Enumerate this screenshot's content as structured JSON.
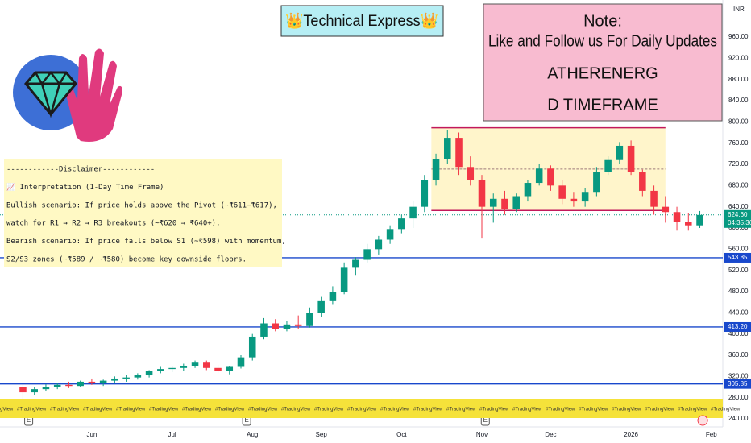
{
  "banner": "👑Technical Express👑",
  "note": {
    "title": "Note:",
    "line1": "Like and Follow us For Daily Updates",
    "symbol": "ATHERENERG",
    "timeframe": "D TIMEFRAME"
  },
  "disclaimer": [
    "------------Disclaimer------------",
    "📈 Interpretation (1-Day Time Frame)",
    "Bullish scenario: If price holds above the Pivot (~₹611–₹617),",
    "watch for R1 → R2 → R3 breakouts (~₹620 → ₹640+).",
    "Bearish scenario: If price falls below S1 (~₹598) with momentum,",
    "S2/S3 zones (~₹589 / ~₹580) become key downside floors."
  ],
  "watermark": "#TradingView",
  "event_marker": "E",
  "chart_data": {
    "type": "candlestick",
    "currency": "INR",
    "up_color": "#089981",
    "down_color": "#f23645",
    "open": [
      300,
      290,
      296,
      300,
      304,
      302,
      310,
      308,
      312,
      316,
      318,
      322,
      330,
      334,
      336,
      340,
      346,
      336,
      330,
      338,
      356,
      395,
      420,
      410,
      418,
      415,
      440,
      462,
      480,
      525,
      540,
      560,
      578,
      598,
      618,
      640,
      690,
      730,
      770,
      715,
      690,
      640,
      655,
      635,
      660,
      685,
      712,
      680,
      655,
      650,
      668,
      705,
      728,
      755,
      705,
      670,
      640,
      630,
      612,
      605
    ],
    "high": [
      305,
      300,
      305,
      308,
      310,
      312,
      316,
      314,
      320,
      322,
      326,
      332,
      338,
      340,
      344,
      350,
      350,
      342,
      340,
      360,
      400,
      430,
      428,
      425,
      435,
      450,
      470,
      490,
      535,
      545,
      570,
      585,
      605,
      625,
      650,
      700,
      740,
      785,
      780,
      735,
      700,
      665,
      670,
      665,
      690,
      720,
      718,
      690,
      668,
      675,
      715,
      735,
      762,
      765,
      710,
      680,
      660,
      640,
      628,
      632
    ],
    "low": [
      275,
      285,
      292,
      296,
      298,
      300,
      304,
      302,
      308,
      310,
      314,
      318,
      326,
      328,
      330,
      336,
      332,
      326,
      324,
      335,
      350,
      390,
      405,
      405,
      410,
      412,
      432,
      455,
      475,
      510,
      535,
      550,
      570,
      590,
      600,
      630,
      680,
      720,
      700,
      680,
      580,
      610,
      625,
      630,
      650,
      680,
      670,
      645,
      640,
      640,
      660,
      700,
      720,
      700,
      660,
      625,
      610,
      595,
      595,
      600
    ],
    "close": [
      290,
      296,
      300,
      304,
      302,
      310,
      308,
      312,
      316,
      318,
      322,
      330,
      334,
      336,
      340,
      346,
      336,
      330,
      338,
      356,
      395,
      420,
      410,
      418,
      415,
      440,
      462,
      480,
      525,
      540,
      560,
      578,
      598,
      618,
      640,
      690,
      730,
      770,
      715,
      690,
      640,
      655,
      635,
      660,
      685,
      712,
      680,
      655,
      650,
      668,
      705,
      728,
      755,
      705,
      670,
      640,
      630,
      612,
      605,
      624.6
    ],
    "xlim": [
      -2,
      61
    ],
    "xticks": [
      {
        "value": 6,
        "label": "Jun"
      },
      {
        "value": 13,
        "label": "Jul"
      },
      {
        "value": 20,
        "label": "Aug"
      },
      {
        "value": 26,
        "label": "Sep"
      },
      {
        "value": 33,
        "label": "Oct"
      },
      {
        "value": 40,
        "label": "Nov"
      },
      {
        "value": 46,
        "label": "Dec"
      },
      {
        "value": 53,
        "label": "2026"
      },
      {
        "value": 60,
        "label": "Feb"
      }
    ],
    "ylim": [
      240,
      960
    ],
    "yticks": [
      {
        "value": 240,
        "label": "240.00"
      },
      {
        "value": 280,
        "label": "280.00"
      },
      {
        "value": 320,
        "label": "320.00"
      },
      {
        "value": 360,
        "label": "360.00"
      },
      {
        "value": 400,
        "label": "400.00"
      },
      {
        "value": 440,
        "label": "440.00"
      },
      {
        "value": 480,
        "label": "480.00"
      },
      {
        "value": 520,
        "label": "520.00"
      },
      {
        "value": 560,
        "label": "560.00"
      },
      {
        "value": 600,
        "label": "600.00"
      },
      {
        "value": 640,
        "label": "640.00"
      },
      {
        "value": 680,
        "label": "680.00"
      },
      {
        "value": 720,
        "label": "720.00"
      },
      {
        "value": 760,
        "label": "760.00"
      },
      {
        "value": 800,
        "label": "800.00"
      },
      {
        "value": 840,
        "label": "840.00"
      },
      {
        "value": 880,
        "label": "880.00"
      },
      {
        "value": 920,
        "label": "920.00"
      },
      {
        "value": 960,
        "label": "960.00"
      }
    ],
    "price_levels": [
      {
        "value": 624.6,
        "label": "624.60"
      },
      543.85,
      {
        "value": 413.2,
        "label": "413.20"
      },
      305.85
    ],
    "price_level_colors": [
      "#089981",
      "#1848cc",
      "#1848cc",
      "#1848cc"
    ],
    "countdown": "04:35:36",
    "zone": {
      "x": [
        35.6,
        56
      ],
      "top": 789,
      "bottom": 633,
      "mid": 711
    }
  }
}
